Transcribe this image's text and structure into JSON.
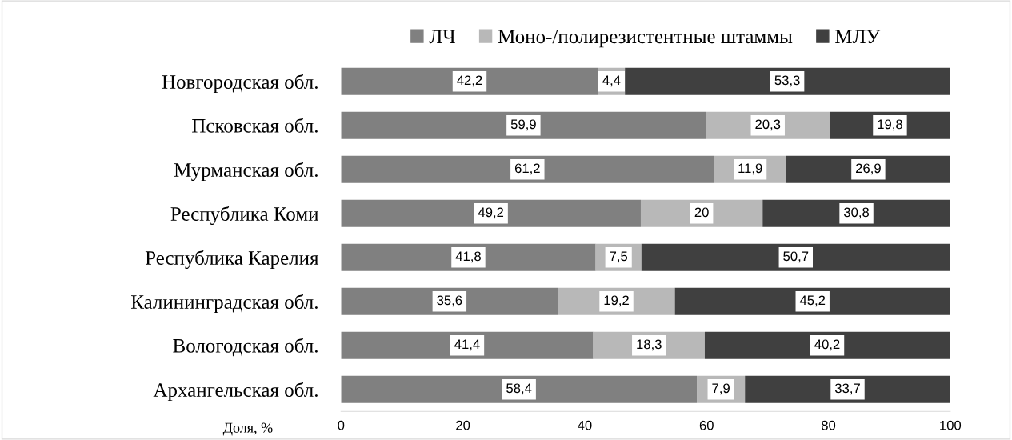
{
  "chart_data": {
    "type": "bar",
    "orientation": "horizontal",
    "stacked": true,
    "xlabel": "Доля, %",
    "categories": [
      "Новгородская обл.",
      "Псковская обл.",
      "Мурманская обл.",
      "Республика Коми",
      "Республика Карелия",
      "Калининградская обл.",
      "Вологодская обл.",
      "Архангельская обл."
    ],
    "series": [
      {
        "name": "ЛЧ",
        "color": "#808080",
        "values": [
          42.2,
          59.9,
          61.2,
          49.2,
          41.8,
          35.6,
          41.4,
          58.4
        ],
        "value_labels": [
          "42,2",
          "59,9",
          "61,2",
          "49,2",
          "41,8",
          "35,6",
          "41,4",
          "58,4"
        ]
      },
      {
        "name": "Моно-/полирезистентные штаммы",
        "color": "#b8b8b8",
        "values": [
          4.4,
          20.3,
          11.9,
          20,
          7.5,
          19.2,
          18.3,
          7.9
        ],
        "value_labels": [
          "4,4",
          "20,3",
          "11,9",
          "20",
          "7,5",
          "19,2",
          "18,3",
          "7,9"
        ]
      },
      {
        "name": "МЛУ",
        "color": "#404040",
        "values": [
          53.3,
          19.8,
          26.9,
          30.8,
          50.7,
          45.2,
          40.2,
          33.7
        ],
        "value_labels": [
          "53,3",
          "19,8",
          "26,9",
          "30,8",
          "50,7",
          "45,2",
          "40,2",
          "33,7"
        ]
      }
    ],
    "xlim": [
      0,
      100
    ],
    "xticks": [
      0,
      20,
      40,
      60,
      80,
      100
    ],
    "grid": false,
    "legend": "top"
  }
}
